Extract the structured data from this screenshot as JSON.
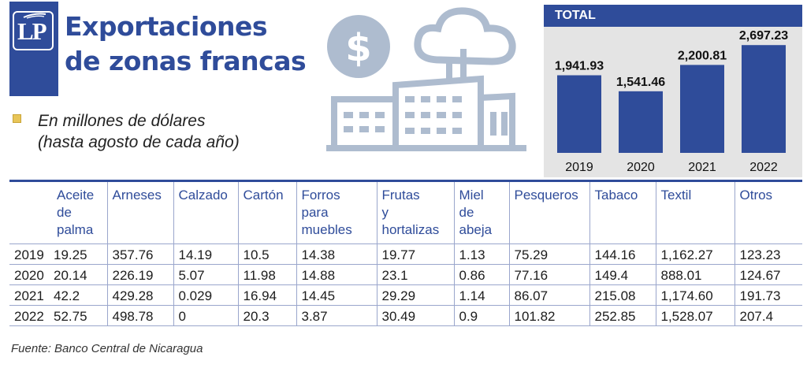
{
  "logo": {
    "text": "LP"
  },
  "title_line1": "Exportaciones",
  "title_line2": "de zonas francas",
  "subtitle_line1": "En millones de dólares",
  "subtitle_line2": "(hasta agosto de cada año)",
  "source": "Fuente: Banco Central de Nicaragua",
  "colors": {
    "accent": "#2f4c9a",
    "bar": "#2f4c9a",
    "panel": "#e4e4e4",
    "legend": "#e8c558"
  },
  "chart_data": [
    {
      "type": "bar",
      "title": "TOTAL",
      "categories": [
        "2019",
        "2020",
        "2021",
        "2022"
      ],
      "values": [
        1941.93,
        1541.46,
        2200.81,
        2697.23
      ],
      "value_labels": [
        "1,941.93",
        "1,541.46",
        "2,200.81",
        "2,697.23"
      ],
      "ylim": [
        0,
        2800
      ],
      "grid": false
    },
    {
      "type": "table",
      "columns": [
        {
          "label": "",
          "lines": []
        },
        {
          "label": "Aceite de palma",
          "lines": [
            "Aceite",
            "de",
            "palma"
          ]
        },
        {
          "label": "Arneses",
          "lines": [
            "Arneses"
          ]
        },
        {
          "label": "Calzado",
          "lines": [
            "Calzado"
          ]
        },
        {
          "label": "Cartón",
          "lines": [
            "Cartón"
          ]
        },
        {
          "label": "Forros para muebles",
          "lines": [
            "Forros",
            "para",
            "muebles"
          ]
        },
        {
          "label": "Frutas y hortalizas",
          "lines": [
            "Frutas",
            "y",
            "hortalizas"
          ]
        },
        {
          "label": "Miel de abeja",
          "lines": [
            "Miel",
            "de",
            "abeja"
          ]
        },
        {
          "label": "Pesqueros",
          "lines": [
            "Pesqueros"
          ]
        },
        {
          "label": "Tabaco",
          "lines": [
            "Tabaco"
          ]
        },
        {
          "label": "Textil",
          "lines": [
            "Textil"
          ]
        },
        {
          "label": "Otros",
          "lines": [
            "Otros"
          ]
        }
      ],
      "rows": [
        [
          "2019",
          "19.25",
          "357.76",
          "14.19",
          "10.5",
          "14.38",
          "19.77",
          "1.13",
          "75.29",
          "144.16",
          "1,162.27",
          "123.23"
        ],
        [
          "2020",
          "20.14",
          "226.19",
          "5.07",
          "11.98",
          "14.88",
          "23.1",
          "0.86",
          "77.16",
          "149.4",
          "888.01",
          "124.67"
        ],
        [
          "2021",
          "42.2",
          "429.28",
          "0.029",
          "16.94",
          "14.45",
          "29.29",
          "1.14",
          "86.07",
          "215.08",
          "1,174.60",
          "191.73"
        ],
        [
          "2022",
          "52.75",
          "498.78",
          "0",
          "20.3",
          "3.87",
          "30.49",
          "0.9",
          "101.82",
          "252.85",
          "1,528.07",
          "207.4"
        ]
      ]
    }
  ]
}
